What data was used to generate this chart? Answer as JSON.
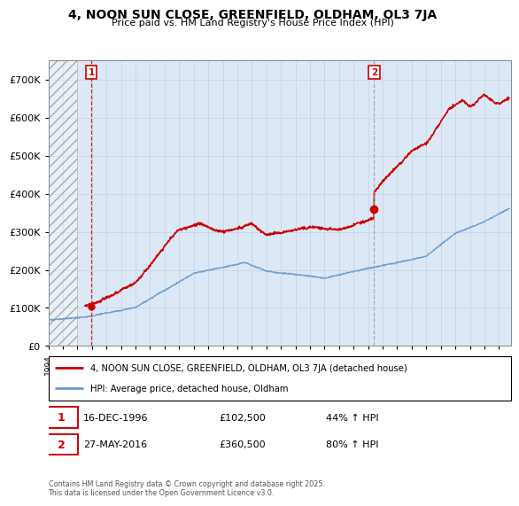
{
  "title": "4, NOON SUN CLOSE, GREENFIELD, OLDHAM, OL3 7JA",
  "subtitle": "Price paid vs. HM Land Registry's House Price Index (HPI)",
  "legend_line1": "4, NOON SUN CLOSE, GREENFIELD, OLDHAM, OL3 7JA (detached house)",
  "legend_line2": "HPI: Average price, detached house, Oldham",
  "annotation1_date": "16-DEC-1996",
  "annotation1_price": "£102,500",
  "annotation1_hpi": "44% ↑ HPI",
  "annotation2_date": "27-MAY-2016",
  "annotation2_price": "£360,500",
  "annotation2_hpi": "80% ↑ HPI",
  "footer": "Contains HM Land Registry data © Crown copyright and database right 2025.\nThis data is licensed under the Open Government Licence v3.0.",
  "ylim": [
    0,
    750000
  ],
  "yticks": [
    0,
    100000,
    200000,
    300000,
    400000,
    500000,
    600000,
    700000
  ],
  "grid_color": "#c8d8e8",
  "plot_bg": "#dce8f5",
  "red_color": "#cc0000",
  "blue_color": "#6699cc",
  "vline1_color": "#cc0000",
  "vline2_color": "#999999",
  "marker1_x": 1996.96,
  "marker1_y": 102500,
  "marker2_x": 2016.41,
  "marker2_y": 360500,
  "vline1_x": 1996.96,
  "vline2_x": 2016.41,
  "xlim_left": 1994.0,
  "xlim_right": 2025.8,
  "hatch_end": 1996.0
}
